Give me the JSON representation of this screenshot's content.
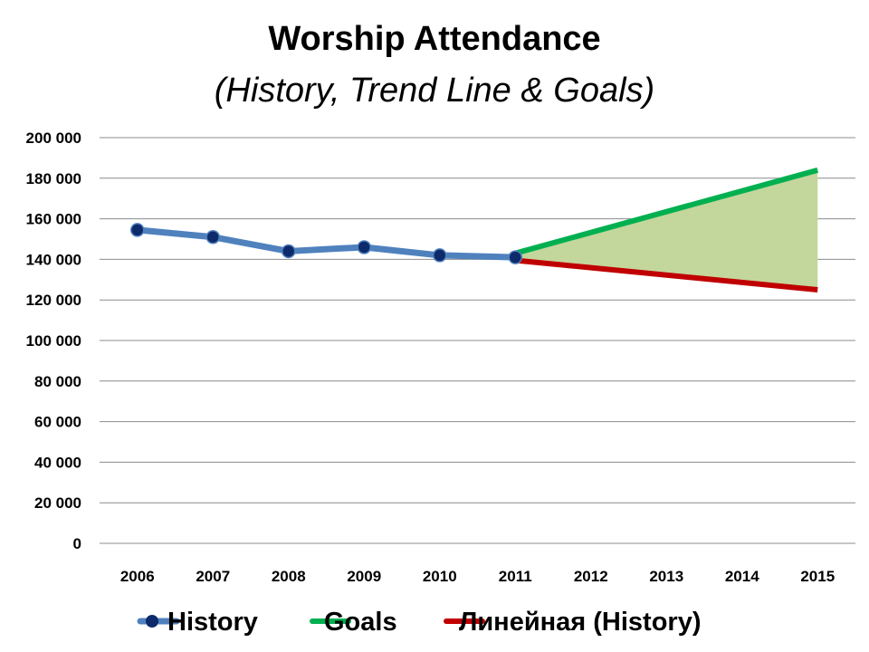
{
  "chart_data": {
    "type": "line",
    "title": "Worship Attendance",
    "subtitle": "(History, Trend Line & Goals)",
    "xlabel": "",
    "ylabel": "",
    "categories": [
      "2006",
      "2007",
      "2008",
      "2009",
      "2010",
      "2011",
      "2012",
      "2013",
      "2014",
      "2015"
    ],
    "ylim": [
      0,
      200000
    ],
    "yticks": [
      0,
      20000,
      40000,
      60000,
      80000,
      100000,
      120000,
      140000,
      160000,
      180000,
      200000
    ],
    "ytick_labels": [
      "0",
      "20 000",
      "40 000",
      "60 000",
      "80 000",
      "100 000",
      "120 000",
      "140 000",
      "160 000",
      "180 000",
      "200 000"
    ],
    "grid": true,
    "legend_position": "bottom",
    "series": [
      {
        "name": "History",
        "color": "#4f81bd",
        "marker_color": "#0d2a6b",
        "marker": "circle",
        "x": [
          "2006",
          "2007",
          "2008",
          "2009",
          "2010",
          "2011"
        ],
        "values": [
          154500,
          151000,
          144000,
          146000,
          142000,
          141000
        ]
      },
      {
        "name": "Goals",
        "color": "#00b050",
        "x": [
          "2011",
          "2015"
        ],
        "values": [
          143000,
          184000
        ]
      },
      {
        "name": "Линейная (History)",
        "color": "#c00000",
        "x": [
          "2011",
          "2015"
        ],
        "values": [
          139500,
          125000
        ]
      }
    ],
    "shaded_area": {
      "color": "#c3d69b",
      "between": [
        "Goals",
        "Линейная (History)"
      ],
      "x": [
        "2011",
        "2015"
      ]
    }
  }
}
